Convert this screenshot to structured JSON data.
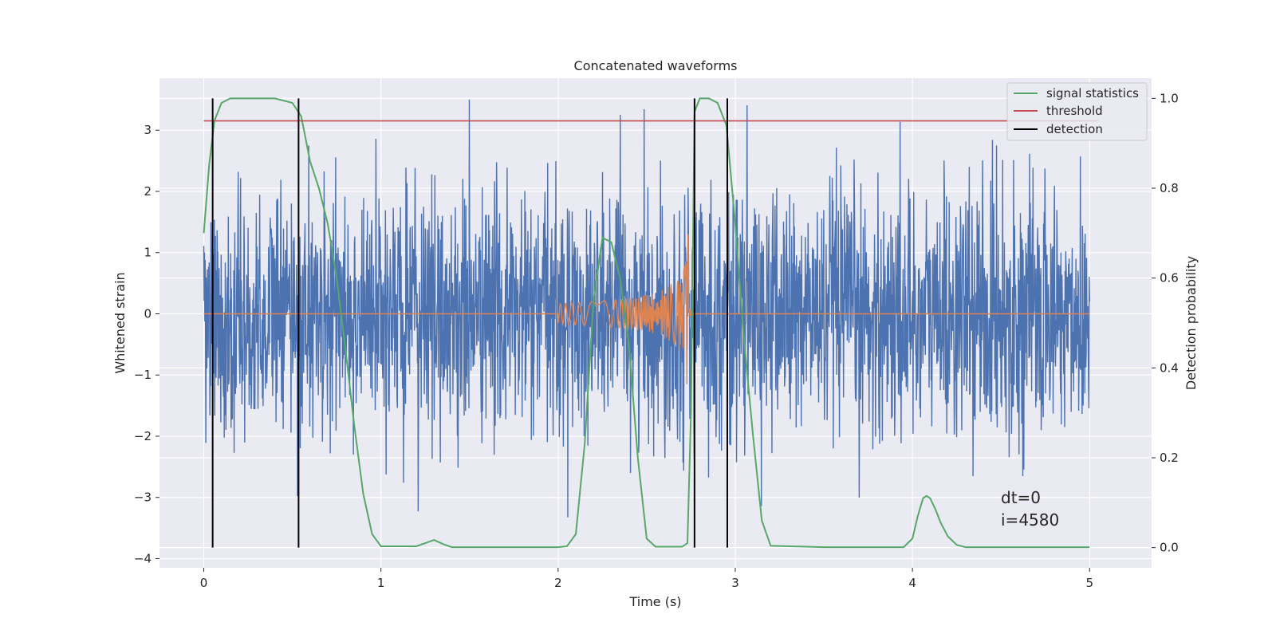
{
  "chart_data": {
    "type": "line",
    "title": "Concatenated waveforms",
    "xlabel": "Time (s)",
    "ylabel_left": "Whitened strain",
    "ylabel_right": "Detection probability",
    "xlim": [
      -0.25,
      5.35
    ],
    "ylim_left": [
      -4.15,
      3.85
    ],
    "ylim_right": [
      -0.045,
      1.045
    ],
    "x_ticks": [
      "0",
      "1",
      "2",
      "3",
      "4",
      "5"
    ],
    "y_ticks_left": [
      "3",
      "2",
      "1",
      "0",
      "−1",
      "−2",
      "−3",
      "−4"
    ],
    "y_ticks_right": [
      "1.0",
      "0.8",
      "0.6",
      "0.4",
      "0.2",
      "0.0"
    ],
    "grid": true,
    "legend_position": "top-right",
    "annotation_lines": [
      "dt=0",
      "i=4580"
    ],
    "colors": {
      "strain": "#4c72b0",
      "template": "#dd8452",
      "signal_statistics": "#55a868",
      "threshold": "#c44e52",
      "detection": "#000000",
      "axes_background": "#eaeaf2",
      "grid": "#ffffff"
    },
    "series": [
      {
        "name": "signal statistics",
        "axis": "right",
        "x": [
          0,
          0.03,
          0.06,
          0.1,
          0.15,
          0.2,
          0.3,
          0.4,
          0.5,
          0.55,
          0.6,
          0.65,
          0.7,
          0.75,
          0.8,
          0.85,
          0.9,
          0.95,
          1.0,
          1.2,
          1.25,
          1.3,
          1.35,
          1.4,
          1.6,
          1.8,
          2.0,
          2.05,
          2.1,
          2.15,
          2.2,
          2.25,
          2.3,
          2.35,
          2.4,
          2.45,
          2.5,
          2.55,
          2.6,
          2.65,
          2.7,
          2.73,
          2.75,
          2.77,
          2.8,
          2.85,
          2.9,
          2.95,
          3.0,
          3.05,
          3.1,
          3.15,
          3.2,
          3.5,
          3.8,
          3.95,
          4.0,
          4.03,
          4.06,
          4.08,
          4.1,
          4.13,
          4.16,
          4.2,
          4.25,
          4.3,
          4.6,
          5.0
        ],
        "values": [
          0.7,
          0.85,
          0.95,
          0.99,
          1.0,
          1.0,
          1.0,
          1.0,
          0.99,
          0.96,
          0.86,
          0.8,
          0.72,
          0.6,
          0.44,
          0.27,
          0.12,
          0.03,
          0.003,
          0.003,
          0.01,
          0.017,
          0.008,
          0.001,
          0.001,
          0.001,
          0.001,
          0.003,
          0.03,
          0.23,
          0.55,
          0.69,
          0.68,
          0.6,
          0.45,
          0.2,
          0.02,
          0.002,
          0.002,
          0.002,
          0.002,
          0.01,
          0.3,
          0.97,
          1.0,
          1.0,
          0.99,
          0.94,
          0.72,
          0.46,
          0.25,
          0.06,
          0.004,
          0.001,
          0.001,
          0.001,
          0.02,
          0.07,
          0.11,
          0.115,
          0.11,
          0.085,
          0.055,
          0.025,
          0.006,
          0.001,
          0.001,
          0.001
        ]
      },
      {
        "name": "threshold",
        "axis": "right",
        "x": [
          0,
          5.05
        ],
        "values": [
          0.95,
          0.95
        ]
      },
      {
        "name": "detection",
        "axis": "right",
        "x_events": [
          0.05,
          0.535,
          2.77,
          2.955
        ],
        "y_range": [
          0.0,
          1.0
        ]
      }
    ]
  }
}
